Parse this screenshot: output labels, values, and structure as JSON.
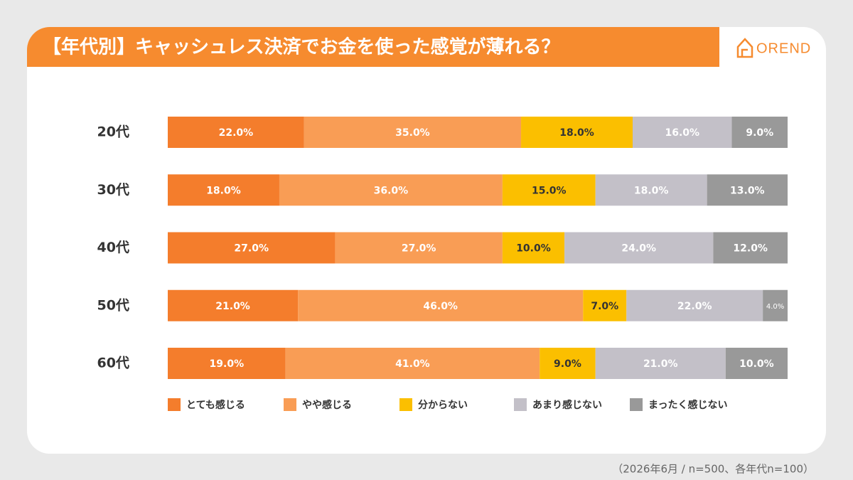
{
  "chart_data": {
    "type": "stacked-bar",
    "title": "【年代別】キャッシュレス決済でお金を使った感覚が薄れる？",
    "logo": "OREND",
    "note": "（2026年6月 / n=500、各年代n=100）",
    "categories": [
      "20代",
      "30代",
      "40代",
      "50代",
      "60代"
    ],
    "xlim": [
      0,
      100
    ],
    "legend": "bottom",
    "series": [
      {
        "name": "とても感じる",
        "color": "#f47d2c",
        "values": [
          22,
          18,
          27,
          21,
          19
        ],
        "value_labels": [
          "22.0%",
          "18.0%",
          "27.0%",
          "21.0%",
          "19.0%"
        ]
      },
      {
        "name": "やや感じる",
        "color": "#f99d55",
        "values": [
          35,
          36,
          27,
          46,
          41
        ],
        "value_labels": [
          "35.0%",
          "36.0%",
          "27.0%",
          "46.0%",
          "41.0%"
        ]
      },
      {
        "name": "分からない",
        "color": "#fbbf00",
        "values": [
          18,
          15,
          10,
          7,
          9
        ],
        "value_labels": [
          "18.0%",
          "15.0%",
          "10.0%",
          "7.0%",
          "9.0%"
        ]
      },
      {
        "name": "あまり感じない",
        "color": "#c3c0c8",
        "values": [
          16,
          18,
          24,
          22,
          21
        ],
        "value_labels": [
          "16.0%",
          "18.0%",
          "24.0%",
          "22.0%",
          "21.0%"
        ]
      },
      {
        "name": "まったく感じない",
        "color": "#999999",
        "values": [
          9,
          13,
          12,
          4,
          10
        ],
        "value_labels": [
          "9.0%",
          "13.0%",
          "12.0%",
          "4.0%",
          "10.0%"
        ]
      }
    ]
  }
}
